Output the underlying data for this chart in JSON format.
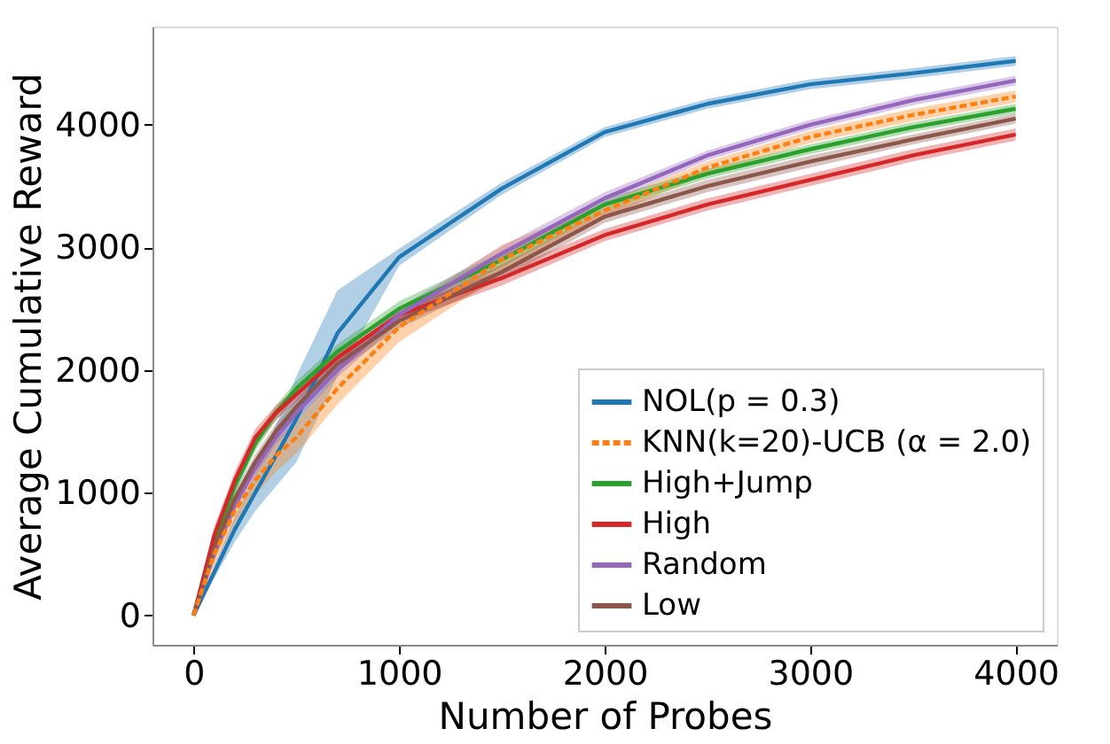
{
  "chart_data": {
    "type": "line",
    "xlabel": "Number of Probes",
    "ylabel": "Average Cumulative Reward",
    "x": [
      0,
      100,
      200,
      300,
      400,
      500,
      700,
      1000,
      1500,
      2000,
      2500,
      3000,
      3500,
      4000
    ],
    "series": [
      {
        "name": "NOL(p = 0.3)",
        "color": "#1f77b4",
        "line_style": "solid",
        "values": [
          0,
          350,
          700,
          1000,
          1300,
          1600,
          2300,
          2920,
          3480,
          3940,
          4170,
          4330,
          4420,
          4520
        ],
        "lower": [
          0,
          300,
          600,
          850,
          1050,
          1250,
          1950,
          2850,
          3430,
          3900,
          4130,
          4290,
          4380,
          4480
        ],
        "upper": [
          0,
          400,
          800,
          1150,
          1550,
          1950,
          2650,
          2990,
          3530,
          3980,
          4210,
          4370,
          4460,
          4560
        ]
      },
      {
        "name": "KNN(k=20)-UCB (α = 2.0)",
        "color": "#ff7f0e",
        "line_style": "dashed",
        "values": [
          0,
          500,
          850,
          1100,
          1300,
          1450,
          1850,
          2350,
          2900,
          3300,
          3650,
          3900,
          4080,
          4230
        ],
        "lower": [
          0,
          400,
          750,
          980,
          1170,
          1320,
          1720,
          2230,
          2780,
          3240,
          3600,
          3850,
          4030,
          4180
        ],
        "upper": [
          0,
          600,
          950,
          1220,
          1430,
          1580,
          1980,
          2470,
          3020,
          3360,
          3700,
          3950,
          4130,
          4280
        ]
      },
      {
        "name": "High+Jump",
        "color": "#2ca02c",
        "line_style": "solid",
        "values": [
          0,
          600,
          1050,
          1400,
          1650,
          1850,
          2150,
          2500,
          2900,
          3350,
          3600,
          3800,
          3980,
          4130
        ],
        "lower": [
          0,
          540,
          990,
          1340,
          1590,
          1790,
          2090,
          2440,
          2840,
          3300,
          3560,
          3760,
          3940,
          4090
        ],
        "upper": [
          0,
          660,
          1110,
          1460,
          1710,
          1910,
          2210,
          2560,
          2960,
          3400,
          3640,
          3840,
          4020,
          4170
        ]
      },
      {
        "name": "High",
        "color": "#d62728",
        "line_style": "solid",
        "values": [
          0,
          650,
          1100,
          1450,
          1650,
          1800,
          2100,
          2450,
          2750,
          3100,
          3350,
          3550,
          3750,
          3920
        ],
        "lower": [
          0,
          580,
          1030,
          1380,
          1590,
          1740,
          2040,
          2390,
          2690,
          3050,
          3300,
          3500,
          3700,
          3870
        ],
        "upper": [
          0,
          720,
          1170,
          1520,
          1710,
          1860,
          2160,
          2510,
          2810,
          3150,
          3400,
          3600,
          3800,
          3970
        ]
      },
      {
        "name": "Random",
        "color": "#9467bd",
        "line_style": "solid",
        "values": [
          0,
          500,
          900,
          1200,
          1450,
          1650,
          2000,
          2450,
          2950,
          3400,
          3750,
          4000,
          4200,
          4360
        ],
        "lower": [
          0,
          440,
          840,
          1140,
          1390,
          1590,
          1940,
          2390,
          2890,
          3350,
          3710,
          3960,
          4160,
          4320
        ],
        "upper": [
          0,
          560,
          960,
          1260,
          1510,
          1710,
          2060,
          2510,
          3010,
          3450,
          3790,
          4040,
          4240,
          4400
        ]
      },
      {
        "name": "Low",
        "color": "#8c564b",
        "line_style": "solid",
        "values": [
          0,
          550,
          950,
          1250,
          1500,
          1700,
          2050,
          2400,
          2800,
          3250,
          3500,
          3700,
          3880,
          4050
        ],
        "lower": [
          0,
          490,
          890,
          1190,
          1440,
          1640,
          1990,
          2340,
          2740,
          3200,
          3450,
          3650,
          3840,
          4010
        ],
        "upper": [
          0,
          610,
          1010,
          1310,
          1560,
          1760,
          2110,
          2460,
          2860,
          3300,
          3550,
          3750,
          3920,
          4090
        ]
      }
    ],
    "xlim": [
      -200,
      4200
    ],
    "ylim": [
      -240,
      4800
    ],
    "xticks": [
      0,
      1000,
      2000,
      3000,
      4000
    ],
    "yticks": [
      0,
      1000,
      2000,
      3000,
      4000
    ],
    "grid": false,
    "legend": "bottom right",
    "marker": "none"
  }
}
